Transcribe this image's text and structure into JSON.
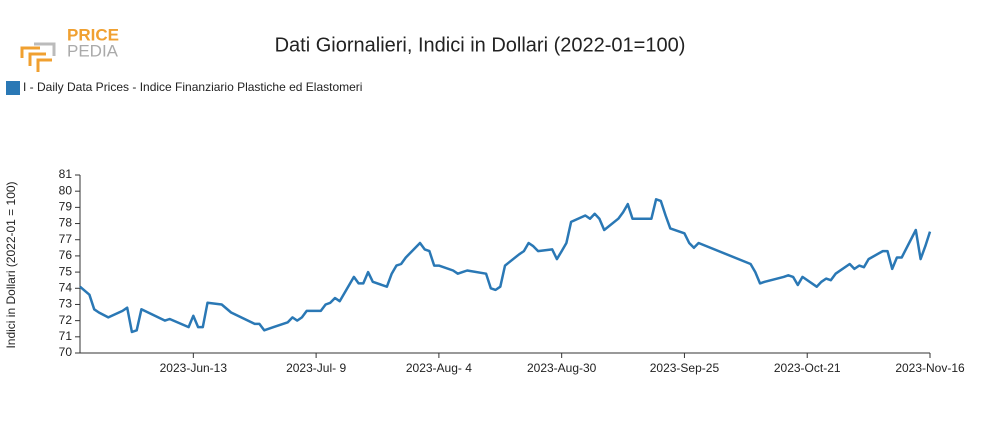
{
  "logo": {
    "line1": "PRICE",
    "line2": "PEDIA"
  },
  "chart_data": {
    "type": "line",
    "title": "Dati Giornalieri, Indici in Dollari (2022-01=100)",
    "y_label": "Indici in Dollari (2022-01 = 100)",
    "legend_position": "top-left",
    "x": [
      "2023-05-20",
      "2023-05-22",
      "2023-05-23",
      "2023-05-24",
      "2023-05-26",
      "2023-05-29",
      "2023-05-30",
      "2023-05-31",
      "2023-06-01",
      "2023-06-02",
      "2023-06-07",
      "2023-06-08",
      "2023-06-12",
      "2023-06-13",
      "2023-06-14",
      "2023-06-15",
      "2023-06-16",
      "2023-06-19",
      "2023-06-21",
      "2023-06-26",
      "2023-06-27",
      "2023-06-28",
      "2023-06-30",
      "2023-07-03",
      "2023-07-04",
      "2023-07-05",
      "2023-07-06",
      "2023-07-07",
      "2023-07-10",
      "2023-07-11",
      "2023-07-12",
      "2023-07-13",
      "2023-07-14",
      "2023-07-17",
      "2023-07-18",
      "2023-07-19",
      "2023-07-20",
      "2023-07-21",
      "2023-07-24",
      "2023-07-25",
      "2023-07-26",
      "2023-07-27",
      "2023-07-28",
      "2023-07-31",
      "2023-08-01",
      "2023-08-02",
      "2023-08-03",
      "2023-08-04",
      "2023-08-07",
      "2023-08-08",
      "2023-08-09",
      "2023-08-10",
      "2023-08-14",
      "2023-08-15",
      "2023-08-16",
      "2023-08-17",
      "2023-08-18",
      "2023-08-21",
      "2023-08-22",
      "2023-08-23",
      "2023-08-24",
      "2023-08-25",
      "2023-08-28",
      "2023-08-29",
      "2023-08-30",
      "2023-08-31",
      "2023-09-01",
      "2023-09-04",
      "2023-09-05",
      "2023-09-06",
      "2023-09-07",
      "2023-09-08",
      "2023-09-11",
      "2023-09-12",
      "2023-09-13",
      "2023-09-14",
      "2023-09-18",
      "2023-09-19",
      "2023-09-20",
      "2023-09-21",
      "2023-09-22",
      "2023-09-25",
      "2023-09-26",
      "2023-09-27",
      "2023-09-28",
      "2023-10-09",
      "2023-10-10",
      "2023-10-11",
      "2023-10-12",
      "2023-10-16",
      "2023-10-17",
      "2023-10-18",
      "2023-10-19",
      "2023-10-20",
      "2023-10-23",
      "2023-10-24",
      "2023-10-25",
      "2023-10-26",
      "2023-10-27",
      "2023-10-30",
      "2023-10-31",
      "2023-11-01",
      "2023-11-02",
      "2023-11-03",
      "2023-11-06",
      "2023-11-07",
      "2023-11-08",
      "2023-11-09",
      "2023-11-10",
      "2023-11-13",
      "2023-11-14",
      "2023-11-15",
      "2023-11-16"
    ],
    "series": [
      {
        "name": "I - Daily Data Prices - Indice Finanziario Plastiche ed Elastomeri",
        "color": "#2a78b5",
        "values": [
          74.1,
          73.6,
          72.7,
          72.5,
          72.2,
          72.6,
          72.8,
          71.3,
          71.4,
          72.7,
          72.0,
          72.1,
          71.6,
          72.3,
          71.6,
          71.6,
          73.1,
          73.0,
          72.5,
          71.8,
          71.8,
          71.4,
          71.6,
          71.9,
          72.2,
          72.0,
          72.2,
          72.6,
          72.6,
          73.0,
          73.1,
          73.4,
          73.2,
          74.7,
          74.3,
          74.3,
          75.0,
          74.4,
          74.1,
          74.9,
          75.4,
          75.5,
          75.9,
          76.8,
          76.4,
          76.3,
          75.4,
          75.4,
          75.1,
          74.9,
          75.0,
          75.1,
          74.9,
          74.0,
          73.9,
          74.1,
          75.4,
          76.1,
          76.3,
          76.8,
          76.6,
          76.3,
          76.4,
          75.8,
          76.3,
          76.8,
          78.1,
          78.5,
          78.3,
          78.6,
          78.3,
          77.6,
          78.3,
          78.7,
          79.2,
          78.3,
          78.3,
          79.5,
          79.4,
          78.5,
          77.7,
          77.4,
          76.8,
          76.5,
          76.8,
          75.5,
          75.0,
          74.3,
          74.4,
          74.7,
          74.8,
          74.7,
          74.2,
          74.7,
          74.1,
          74.4,
          74.6,
          74.5,
          74.9,
          75.5,
          75.2,
          75.4,
          75.3,
          75.8,
          76.3,
          76.3,
          75.2,
          75.9,
          75.9,
          77.6,
          75.8,
          76.6,
          77.5
        ]
      }
    ],
    "xlim": [
      "2023-05-20",
      "2023-11-16"
    ],
    "xticks": [
      {
        "value": "2023-06-13",
        "label": "2023-Jun-13"
      },
      {
        "value": "2023-07-09",
        "label": "2023-Jul- 9"
      },
      {
        "value": "2023-08-04",
        "label": "2023-Aug- 4"
      },
      {
        "value": "2023-08-30",
        "label": "2023-Aug-30"
      },
      {
        "value": "2023-09-25",
        "label": "2023-Sep-25"
      },
      {
        "value": "2023-10-21",
        "label": "2023-Oct-21"
      },
      {
        "value": "2023-11-16",
        "label": "2023-Nov-16"
      }
    ],
    "ylim": [
      70,
      81
    ],
    "yticks": [
      70,
      71,
      72,
      73,
      74,
      75,
      76,
      77,
      78,
      79,
      80,
      81
    ],
    "grid": false
  }
}
